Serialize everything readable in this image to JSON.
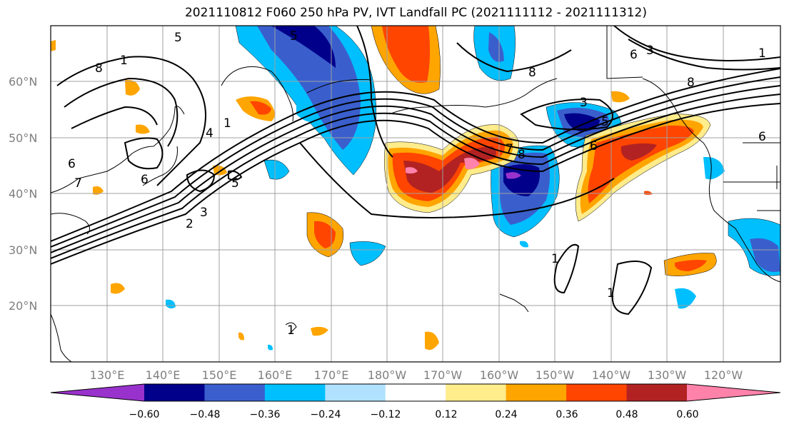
{
  "title": "2021110812 F060 250 hPa PV, IVT Landfall PC (2021111112 - 2021111312)",
  "map": {
    "lat_labels": [
      "60°N",
      "50°N",
      "40°N",
      "30°N",
      "20°N"
    ],
    "lon_labels": [
      "130°E",
      "140°E",
      "150°E",
      "160°E",
      "170°E",
      "180°W",
      "170°W",
      "160°W",
      "150°W",
      "140°W",
      "130°W",
      "120°W"
    ],
    "pv_contour_labels": [
      "1",
      "2",
      "3",
      "4",
      "5",
      "6",
      "7",
      "8"
    ],
    "grid": true
  },
  "colorbar": {
    "ticks": [
      "−0.60",
      "−0.48",
      "−0.36",
      "−0.24",
      "−0.12",
      "0.12",
      "0.24",
      "0.36",
      "0.48",
      "0.60"
    ],
    "colors": [
      "#9932CC",
      "#00008B",
      "#3A5FCD",
      "#00BFFF",
      "#B0E2FF",
      "#FFFFFF",
      "#FFEC8B",
      "#FFA500",
      "#FF4500",
      "#B22222",
      "#FF82AB"
    ]
  }
}
